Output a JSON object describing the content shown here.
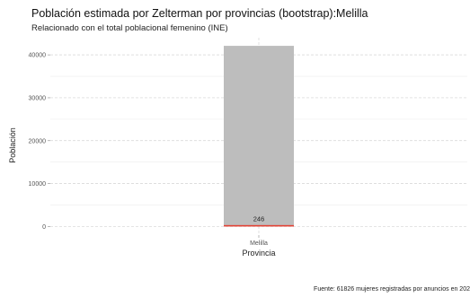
{
  "chart_data": {
    "type": "bar",
    "title": "Población estimada por Zelterman por provincias (bootstrap):Melilla",
    "subtitle": "Relacionado con el total poblacional femenino (INE)",
    "xlabel": "Provincia",
    "ylabel": "Población",
    "caption": "Fuente: 61826 mujeres registradas por anuncios en 202",
    "categories": [
      "Melilla"
    ],
    "series": [
      {
        "values": [
          42100
        ],
        "color": "#bdbdbd"
      },
      {
        "values": [
          246
        ],
        "color": "#e34234"
      }
    ],
    "data_labels": [
      "246"
    ],
    "ylim": [
      -2000,
      44000
    ],
    "yticks": [
      0,
      10000,
      20000,
      30000,
      40000
    ],
    "ytick_labels": [
      "0",
      "10000",
      "20000",
      "30000",
      "40000"
    ],
    "grid": true
  }
}
